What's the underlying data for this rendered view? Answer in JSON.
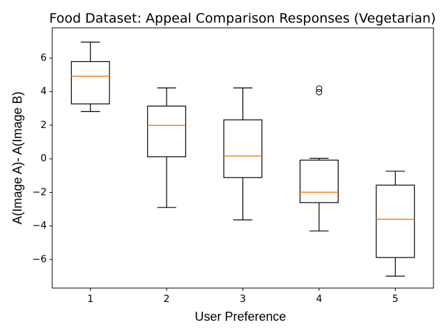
{
  "chart_data": {
    "type": "box",
    "title": "Food Dataset: Appeal Comparison Responses (Vegetarian)",
    "xlabel": "User Preference",
    "ylabel": "A(Image A)- A(Image B)",
    "categories": [
      "1",
      "2",
      "3",
      "4",
      "5"
    ],
    "box_color": "#000000",
    "median_color": "#ff7f0e",
    "boxes": [
      {
        "whisker_low": 2.81,
        "q1": 3.27,
        "median": 4.92,
        "q3": 5.79,
        "whisker_high": 6.95,
        "outliers": []
      },
      {
        "whisker_low": -2.9,
        "q1": 0.12,
        "median": 1.99,
        "q3": 3.14,
        "whisker_high": 4.22,
        "outliers": []
      },
      {
        "whisker_low": -3.64,
        "q1": -1.12,
        "median": 0.17,
        "q3": 2.32,
        "whisker_high": 4.22,
        "outliers": []
      },
      {
        "whisker_low": -4.3,
        "q1": -2.61,
        "median": -1.99,
        "q3": -0.08,
        "whisker_high": 0.03,
        "outliers": [
          4.18,
          3.97
        ]
      },
      {
        "whisker_low": -6.99,
        "q1": -5.88,
        "median": -3.6,
        "q3": -1.57,
        "whisker_high": -0.74,
        "outliers": []
      }
    ],
    "ylim": [
      -7.7,
      7.8
    ],
    "yticks": [
      {
        "value": -6,
        "label": "−6"
      },
      {
        "value": -4,
        "label": "−4"
      },
      {
        "value": -2,
        "label": "−2"
      },
      0,
      2,
      4,
      6
    ],
    "grid": false
  }
}
